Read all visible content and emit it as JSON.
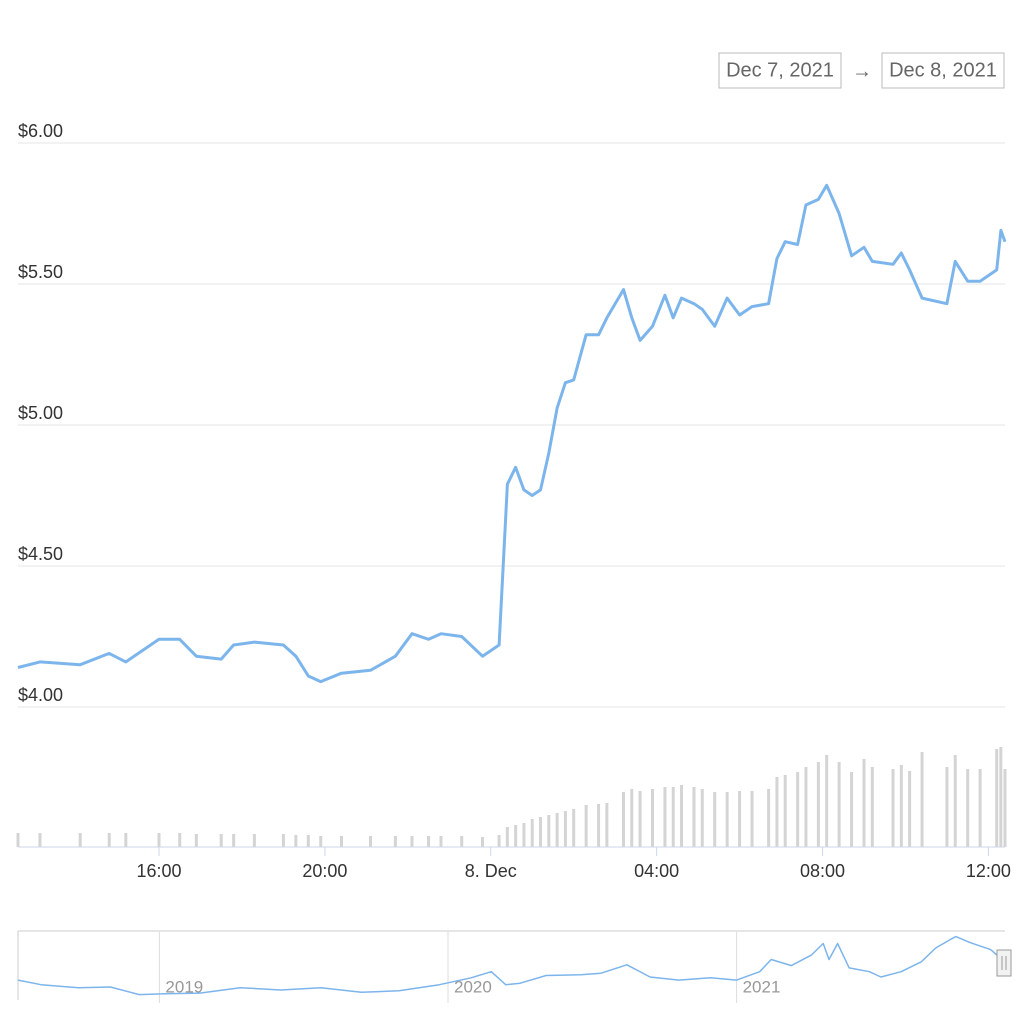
{
  "chart_data": [
    {
      "type": "line",
      "color": "#7cb5ec",
      "volume_color": "#d4d4d4",
      "date_range": [
        "Dec 7, 2021",
        "Dec 8, 2021"
      ],
      "range_separator": "→",
      "x": [
        12.6,
        13.13,
        14.1,
        14.8,
        15.2,
        16.0,
        16.5,
        16.9,
        17.5,
        17.8,
        18.3,
        19.0,
        19.3,
        19.6,
        19.9,
        20.4,
        21.1,
        21.7,
        22.1,
        22.5,
        22.8,
        23.3,
        23.8,
        24.2,
        24.4,
        24.6,
        24.8,
        25.0,
        25.2,
        25.4,
        25.6,
        25.8,
        26.0,
        26.3,
        26.6,
        26.8,
        27.2,
        27.4,
        27.6,
        27.9,
        28.2,
        28.4,
        28.6,
        28.9,
        29.1,
        29.4,
        29.7,
        30.0,
        30.3,
        30.7,
        30.9,
        31.1,
        31.4,
        31.6,
        31.9,
        32.1,
        32.4,
        32.7,
        33.0,
        33.2,
        33.7,
        33.9,
        34.1,
        34.4,
        35.0,
        35.2,
        35.5,
        35.8,
        36.2,
        36.3,
        36.4
      ],
      "values": [
        4.14,
        4.16,
        4.15,
        4.19,
        4.16,
        4.24,
        4.24,
        4.18,
        4.17,
        4.22,
        4.23,
        4.22,
        4.18,
        4.11,
        4.09,
        4.12,
        4.13,
        4.18,
        4.26,
        4.24,
        4.26,
        4.25,
        4.18,
        4.22,
        4.79,
        4.85,
        4.77,
        4.75,
        4.77,
        4.9,
        5.06,
        5.15,
        5.16,
        5.32,
        5.32,
        5.38,
        5.48,
        5.38,
        5.3,
        5.35,
        5.46,
        5.38,
        5.45,
        5.43,
        5.41,
        5.35,
        5.45,
        5.39,
        5.42,
        5.43,
        5.59,
        5.65,
        5.64,
        5.78,
        5.8,
        5.85,
        5.75,
        5.6,
        5.63,
        5.58,
        5.57,
        5.61,
        5.55,
        5.45,
        5.43,
        5.58,
        5.51,
        5.51,
        5.55,
        5.69,
        5.65
      ],
      "volume": [
        14,
        14,
        14,
        14,
        14,
        14,
        14,
        13,
        13,
        13,
        13,
        13,
        12,
        12,
        11,
        11,
        11,
        11,
        11,
        11,
        11,
        11,
        10,
        12,
        20,
        22,
        24,
        28,
        30,
        32,
        34,
        36,
        38,
        42,
        43,
        44,
        55,
        58,
        56,
        58,
        60,
        60,
        62,
        60,
        58,
        55,
        55,
        56,
        56,
        58,
        70,
        72,
        75,
        80,
        85,
        92,
        85,
        75,
        88,
        80,
        78,
        82,
        76,
        95,
        80,
        92,
        78,
        78,
        98,
        100,
        78
      ],
      "volume_ylim": [
        0,
        100
      ],
      "xlim": [
        12.6,
        36.4
      ],
      "xticks": [
        {
          "value": 16,
          "label": "16:00"
        },
        {
          "value": 20,
          "label": "20:00"
        },
        {
          "value": 24,
          "label": "8. Dec"
        },
        {
          "value": 28,
          "label": "04:00"
        },
        {
          "value": 32,
          "label": "08:00"
        },
        {
          "value": 36,
          "label": "12:00"
        }
      ],
      "ylim": [
        4,
        6
      ],
      "yticks": [
        {
          "value": 4,
          "label": "$4.00"
        },
        {
          "value": 4.5,
          "label": "$4.50"
        },
        {
          "value": 5,
          "label": "$5.00"
        },
        {
          "value": 5.5,
          "label": "$5.50"
        },
        {
          "value": 6,
          "label": "$6.00"
        }
      ],
      "grid": true
    },
    {
      "type": "line",
      "color": "#7cb5ec",
      "x": [
        2018.51,
        2018.59,
        2018.72,
        2018.83,
        2018.93,
        2019.02,
        2019.14,
        2019.28,
        2019.42,
        2019.56,
        2019.7,
        2019.83,
        2019.97,
        2020.08,
        2020.15,
        2020.2,
        2020.25,
        2020.34,
        2020.46,
        2020.53,
        2020.62,
        2020.7,
        2020.8,
        2020.91,
        2021.0,
        2021.08,
        2021.12,
        2021.19,
        2021.26,
        2021.3,
        2021.32,
        2021.35,
        2021.39,
        2021.46,
        2021.5,
        2021.57,
        2021.64,
        2021.69,
        2021.74,
        2021.76,
        2021.81,
        2021.88,
        2021.92
      ],
      "values": [
        3.0,
        2.4,
        2.0,
        2.1,
        1.1,
        1.2,
        1.3,
        2.0,
        1.7,
        2.0,
        1.4,
        1.6,
        2.4,
        3.3,
        4.1,
        2.4,
        2.6,
        3.6,
        3.7,
        3.9,
        5.0,
        3.4,
        3.0,
        3.3,
        3.0,
        4.1,
        5.7,
        4.9,
        6.3,
        7.8,
        5.7,
        7.8,
        4.6,
        4.1,
        3.4,
        4.1,
        5.4,
        7.2,
        8.3,
        8.7,
        7.9,
        7.0,
        5.7
      ],
      "xlim": [
        2018.51,
        2021.93
      ],
      "xticks": [
        2019,
        2020,
        2021
      ],
      "ylim": [
        0,
        9.3
      ],
      "grid": true
    }
  ]
}
